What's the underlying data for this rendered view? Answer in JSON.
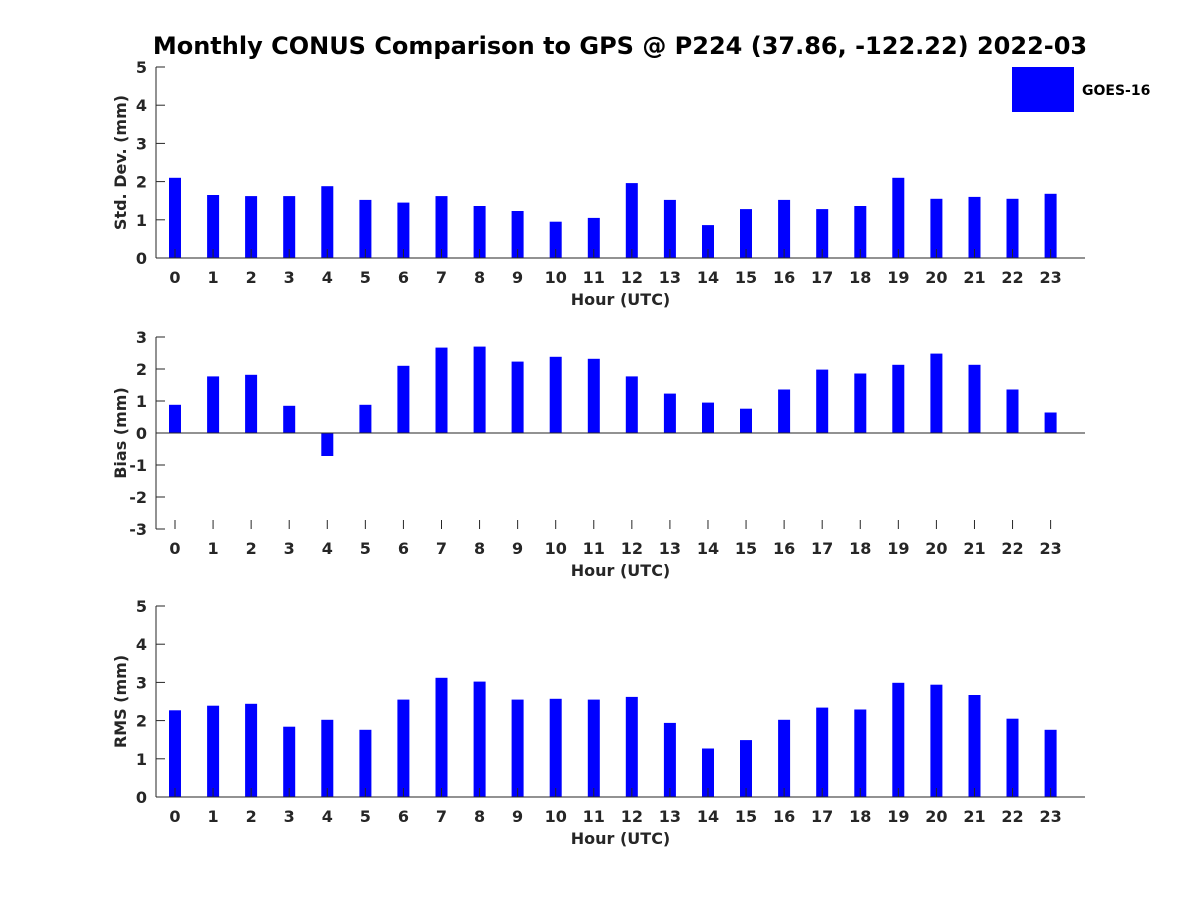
{
  "title": "Monthly CONUS Comparison to GPS @ P224 (37.86, -122.22) 2022-03",
  "legend": {
    "label": "GOES-16",
    "color": "#0000ff",
    "placement": "top-right"
  },
  "colors": {
    "bar": "#0000ff",
    "axis": "#262626",
    "background": "#ffffff"
  },
  "chart_data": [
    {
      "type": "bar",
      "title": "",
      "xlabel": "Hour (UTC)",
      "ylabel": "Std. Dev. (mm)",
      "ylim": [
        0,
        5
      ],
      "yticks": [
        0,
        1,
        2,
        3,
        4,
        5
      ],
      "categories": [
        "0",
        "1",
        "2",
        "3",
        "4",
        "5",
        "6",
        "7",
        "8",
        "9",
        "10",
        "11",
        "12",
        "13",
        "14",
        "15",
        "16",
        "17",
        "18",
        "19",
        "20",
        "21",
        "22",
        "23"
      ],
      "series": [
        {
          "name": "GOES-16",
          "values": [
            2.1,
            1.65,
            1.62,
            1.62,
            1.88,
            1.52,
            1.45,
            1.62,
            1.36,
            1.23,
            0.95,
            1.05,
            1.96,
            1.52,
            0.86,
            1.28,
            1.52,
            1.28,
            1.36,
            2.1,
            1.55,
            1.6,
            1.55,
            1.68
          ]
        }
      ],
      "grid": false
    },
    {
      "type": "bar",
      "title": "",
      "xlabel": "Hour (UTC)",
      "ylabel": "Bias (mm)",
      "ylim": [
        -3,
        3
      ],
      "yticks": [
        -3,
        -2,
        -1,
        0,
        1,
        2,
        3
      ],
      "categories": [
        "0",
        "1",
        "2",
        "3",
        "4",
        "5",
        "6",
        "7",
        "8",
        "9",
        "10",
        "11",
        "12",
        "13",
        "14",
        "15",
        "16",
        "17",
        "18",
        "19",
        "20",
        "21",
        "22",
        "23"
      ],
      "series": [
        {
          "name": "GOES-16",
          "values": [
            0.88,
            1.77,
            1.82,
            0.85,
            -0.72,
            0.88,
            2.1,
            2.67,
            2.7,
            2.23,
            2.38,
            2.32,
            1.77,
            1.23,
            0.95,
            0.76,
            1.36,
            1.98,
            1.86,
            2.13,
            2.48,
            2.13,
            1.36,
            0.64
          ]
        }
      ],
      "grid": false
    },
    {
      "type": "bar",
      "title": "",
      "xlabel": "Hour (UTC)",
      "ylabel": "RMS (mm)",
      "ylim": [
        0,
        5
      ],
      "yticks": [
        0,
        1,
        2,
        3,
        4,
        5
      ],
      "categories": [
        "0",
        "1",
        "2",
        "3",
        "4",
        "5",
        "6",
        "7",
        "8",
        "9",
        "10",
        "11",
        "12",
        "13",
        "14",
        "15",
        "16",
        "17",
        "18",
        "19",
        "20",
        "21",
        "22",
        "23"
      ],
      "series": [
        {
          "name": "GOES-16",
          "values": [
            2.27,
            2.39,
            2.44,
            1.84,
            2.02,
            1.76,
            2.55,
            3.12,
            3.02,
            2.55,
            2.57,
            2.55,
            2.62,
            1.94,
            1.27,
            1.49,
            2.02,
            2.34,
            2.29,
            2.99,
            2.94,
            2.67,
            2.05,
            1.76
          ]
        }
      ],
      "grid": false
    }
  ]
}
